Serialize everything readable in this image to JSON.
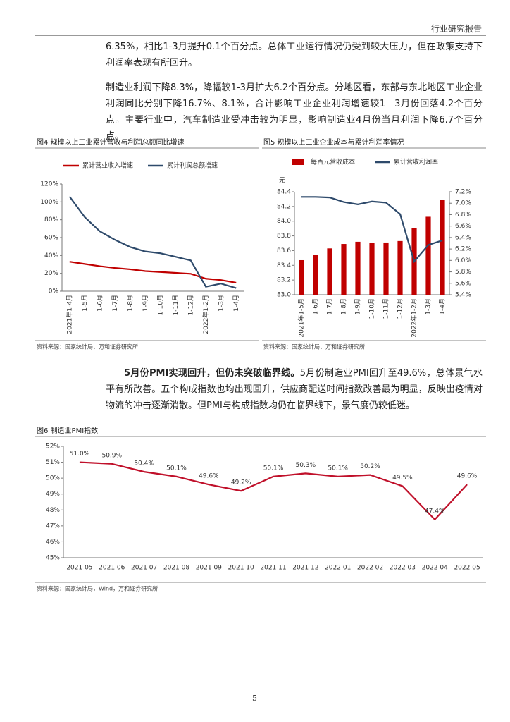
{
  "header": {
    "title": "行业研究报告"
  },
  "paragraphs": [
    "6.35%，相比1-3月提升0.1个百分点。总体工业运行情况仍受到较大压力，但在政策支持下利润率表现有所回升。",
    "制造业利润下降8.3%，降幅较1-3月扩大6.2个百分点。分地区看，东部与东北地区工业企业利润同比分别下降16.7%、8.1%，合计影响工业企业利润增速较1—3月份回落4.2个百分点。主要行业中，汽车制造业受冲击较为明显，影响制造业4月份当月利润下降6.7个百分点。",
    {
      "lead": "5月份PMI实现回升，但仍未突破临界线。",
      "text": "5月份制造业PMI回升至49.6%，总体景气水平有所改善。五个构成指数也均出现回升，供应商配送时间指数改善最为明显，反映出疫情对物流的冲击逐渐消散。但PMI与构成指数均仍在临界线下，景气度仍较低迷。"
    }
  ],
  "chart_data": [
    {
      "type": "line",
      "title": "图4  规模以上工业累计营收与利润总额同比增速",
      "categories": [
        "2021年1-4月",
        "1-5月",
        "1-6月",
        "1-7月",
        "1-8月",
        "1-9月",
        "1-10月",
        "1-11月",
        "1-12月",
        "2022年1-2月",
        "1-3月",
        "1-4月"
      ],
      "series": [
        {
          "name": "累计营业收入增速",
          "color": "#c00000",
          "values": [
            33,
            30.5,
            28,
            26,
            24.5,
            22.5,
            21.5,
            20.5,
            19.5,
            14,
            12.5,
            9.5
          ]
        },
        {
          "name": "累计利润总额增速",
          "color": "#2e4a6b",
          "values": [
            106,
            83,
            67,
            57.5,
            49.5,
            44.5,
            42.5,
            38.5,
            34.5,
            5,
            8.5,
            3.5
          ]
        }
      ],
      "ylim": [
        0,
        120
      ],
      "yticks": [
        {
          "value": 0,
          "label": "0%"
        },
        {
          "value": 20,
          "label": "20%"
        },
        {
          "value": 40,
          "label": "40%"
        },
        {
          "value": 60,
          "label": "60%"
        },
        {
          "value": 80,
          "label": "80%"
        },
        {
          "value": 100,
          "label": "100%"
        },
        {
          "value": 120,
          "label": "120%"
        }
      ],
      "source": "资料来源：国家统计局，万和证券研究所"
    },
    {
      "type": "bar_line",
      "title": "图5  规模以上工业企业成本与累计利润率情况",
      "y_label": "元",
      "categories": [
        "2021年1-5月",
        "1-6月",
        "1-7月",
        "1-8月",
        "1-9月",
        "1-10月",
        "1-11月",
        "1-12月",
        "2022年1-2月",
        "1-3月",
        "1-4月"
      ],
      "series": [
        {
          "name": "每百元营收成本",
          "type": "bar",
          "color": "#c00000",
          "values": [
            83.47,
            83.54,
            83.63,
            83.69,
            83.72,
            83.7,
            83.71,
            83.73,
            83.91,
            84.06,
            84.29
          ]
        },
        {
          "name": "累计营收利润率",
          "type": "line",
          "axis": "y2",
          "color": "#2e4a6b",
          "values": [
            7.11,
            7.11,
            7.1,
            7.02,
            6.98,
            7.03,
            7.01,
            6.81,
            5.98,
            6.27,
            6.35
          ]
        }
      ],
      "ylim": [
        83,
        84.4
      ],
      "yticks": [
        {
          "value": 83,
          "label": "83.0"
        },
        83.2,
        83.4,
        83.6,
        83.8,
        {
          "value": 84,
          "label": "84.0"
        },
        84.2,
        84.4
      ],
      "y2lim": [
        5.4,
        7.2
      ],
      "y2ticks": [
        {
          "value": 5.4,
          "label": "5.4%"
        },
        {
          "value": 5.6,
          "label": "5.6%"
        },
        {
          "value": 5.8,
          "label": "5.8%"
        },
        {
          "value": 6.0,
          "label": "6.0%"
        },
        {
          "value": 6.2,
          "label": "6.2%"
        },
        {
          "value": 6.4,
          "label": "6.4%"
        },
        {
          "value": 6.6,
          "label": "6.6%"
        },
        {
          "value": 6.8,
          "label": "6.8%"
        },
        {
          "value": 7.0,
          "label": "7.0%"
        },
        {
          "value": 7.2,
          "label": "7.2%"
        }
      ],
      "source": "资料来源：国家统计局，万和证券研究所"
    },
    {
      "type": "line",
      "title": "图6  制造业PMI指数",
      "categories": [
        "2021 05",
        "2021 06",
        "2021 07",
        "2021 08",
        "2021 09",
        "2021 10",
        "2021 11",
        "2021 12",
        "2022 01",
        "2022 02",
        "2022 03",
        "2022 04",
        "2022 05"
      ],
      "values": [
        51.0,
        50.9,
        50.4,
        50.1,
        49.6,
        49.2,
        50.1,
        50.3,
        50.1,
        50.2,
        49.5,
        47.4,
        49.6
      ],
      "value_labels": [
        "51.0%",
        "50.9%",
        "50.4%",
        "50.1%",
        "49.6%",
        "49.2%",
        "50.1%",
        "50.3%",
        "50.1%",
        "50.2%",
        "49.5%",
        "47.4%",
        "49.6%"
      ],
      "color": "#c0102a",
      "ylim": [
        45,
        52
      ],
      "yticks": [
        {
          "value": 45,
          "label": "45%"
        },
        {
          "value": 46,
          "label": "46%"
        },
        {
          "value": 47,
          "label": "47%"
        },
        {
          "value": 48,
          "label": "48%"
        },
        {
          "value": 49,
          "label": "49%"
        },
        {
          "value": 50,
          "label": "50%"
        },
        {
          "value": 51,
          "label": "51%"
        },
        {
          "value": 52,
          "label": "52%"
        }
      ],
      "source": "资料来源：国家统计局，Wind，万和证券研究所"
    }
  ],
  "page_number": "5"
}
